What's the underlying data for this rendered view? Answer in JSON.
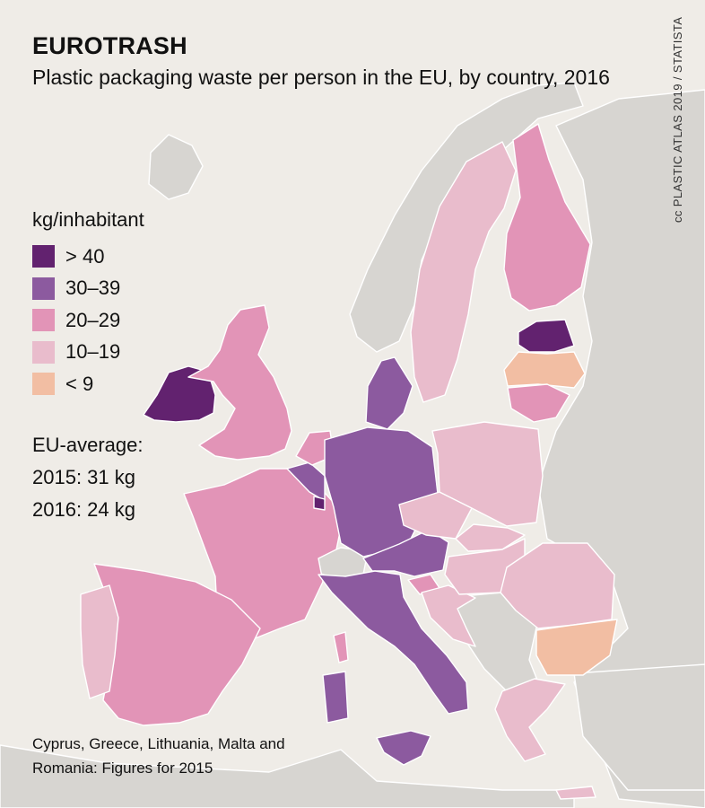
{
  "header": {
    "title": "EUROTRASH",
    "subtitle": "Plastic packaging waste per person in the EU, by country, 2016",
    "credit": "cc PLASTIC ATLAS 2019 / STATISTA"
  },
  "legend": {
    "title": "kg/inhabitant",
    "items": [
      {
        "label": "> 40",
        "color": "#62226f"
      },
      {
        "label": "30–39",
        "color": "#8c5a9f"
      },
      {
        "label": "20–29",
        "color": "#e294b7"
      },
      {
        "label": "10–19",
        "color": "#e9bccc"
      },
      {
        "label": "< 9",
        "color": "#f2bea3"
      }
    ]
  },
  "eu_average": {
    "heading": "EU-average:",
    "line_2015": "2015: 31 kg",
    "line_2016": "2016: 24 kg"
  },
  "footnote": "Cyprus, Greece, Lithuania, Malta and Romania: Figures for 2015",
  "colors": {
    "background": "#efece7",
    "non_eu": "#d7d5d1",
    "border": "#ffffff"
  },
  "countries": [
    {
      "name": "Ireland",
      "category": "> 40"
    },
    {
      "name": "Estonia",
      "category": "> 40"
    },
    {
      "name": "Luxembourg",
      "category": "> 40"
    },
    {
      "name": "Germany",
      "category": "30–39"
    },
    {
      "name": "Denmark",
      "category": "30–39"
    },
    {
      "name": "Belgium",
      "category": "30–39"
    },
    {
      "name": "Austria",
      "category": "30–39"
    },
    {
      "name": "Italy",
      "category": "30–39"
    },
    {
      "name": "Finland",
      "category": "20–29"
    },
    {
      "name": "United Kingdom",
      "category": "20–29"
    },
    {
      "name": "France",
      "category": "20–29"
    },
    {
      "name": "Spain",
      "category": "20–29"
    },
    {
      "name": "Netherlands",
      "category": "20–29"
    },
    {
      "name": "Slovenia",
      "category": "20–29"
    },
    {
      "name": "Lithuania",
      "category": "20–29"
    },
    {
      "name": "Sweden",
      "category": "10–19"
    },
    {
      "name": "Poland",
      "category": "10–19"
    },
    {
      "name": "Czechia",
      "category": "10–19"
    },
    {
      "name": "Slovakia",
      "category": "10–19"
    },
    {
      "name": "Hungary",
      "category": "10–19"
    },
    {
      "name": "Romania",
      "category": "10–19"
    },
    {
      "name": "Croatia",
      "category": "10–19"
    },
    {
      "name": "Greece",
      "category": "10–19"
    },
    {
      "name": "Portugal",
      "category": "10–19"
    },
    {
      "name": "Latvia",
      "category": "< 9"
    },
    {
      "name": "Bulgaria",
      "category": "< 9"
    }
  ]
}
